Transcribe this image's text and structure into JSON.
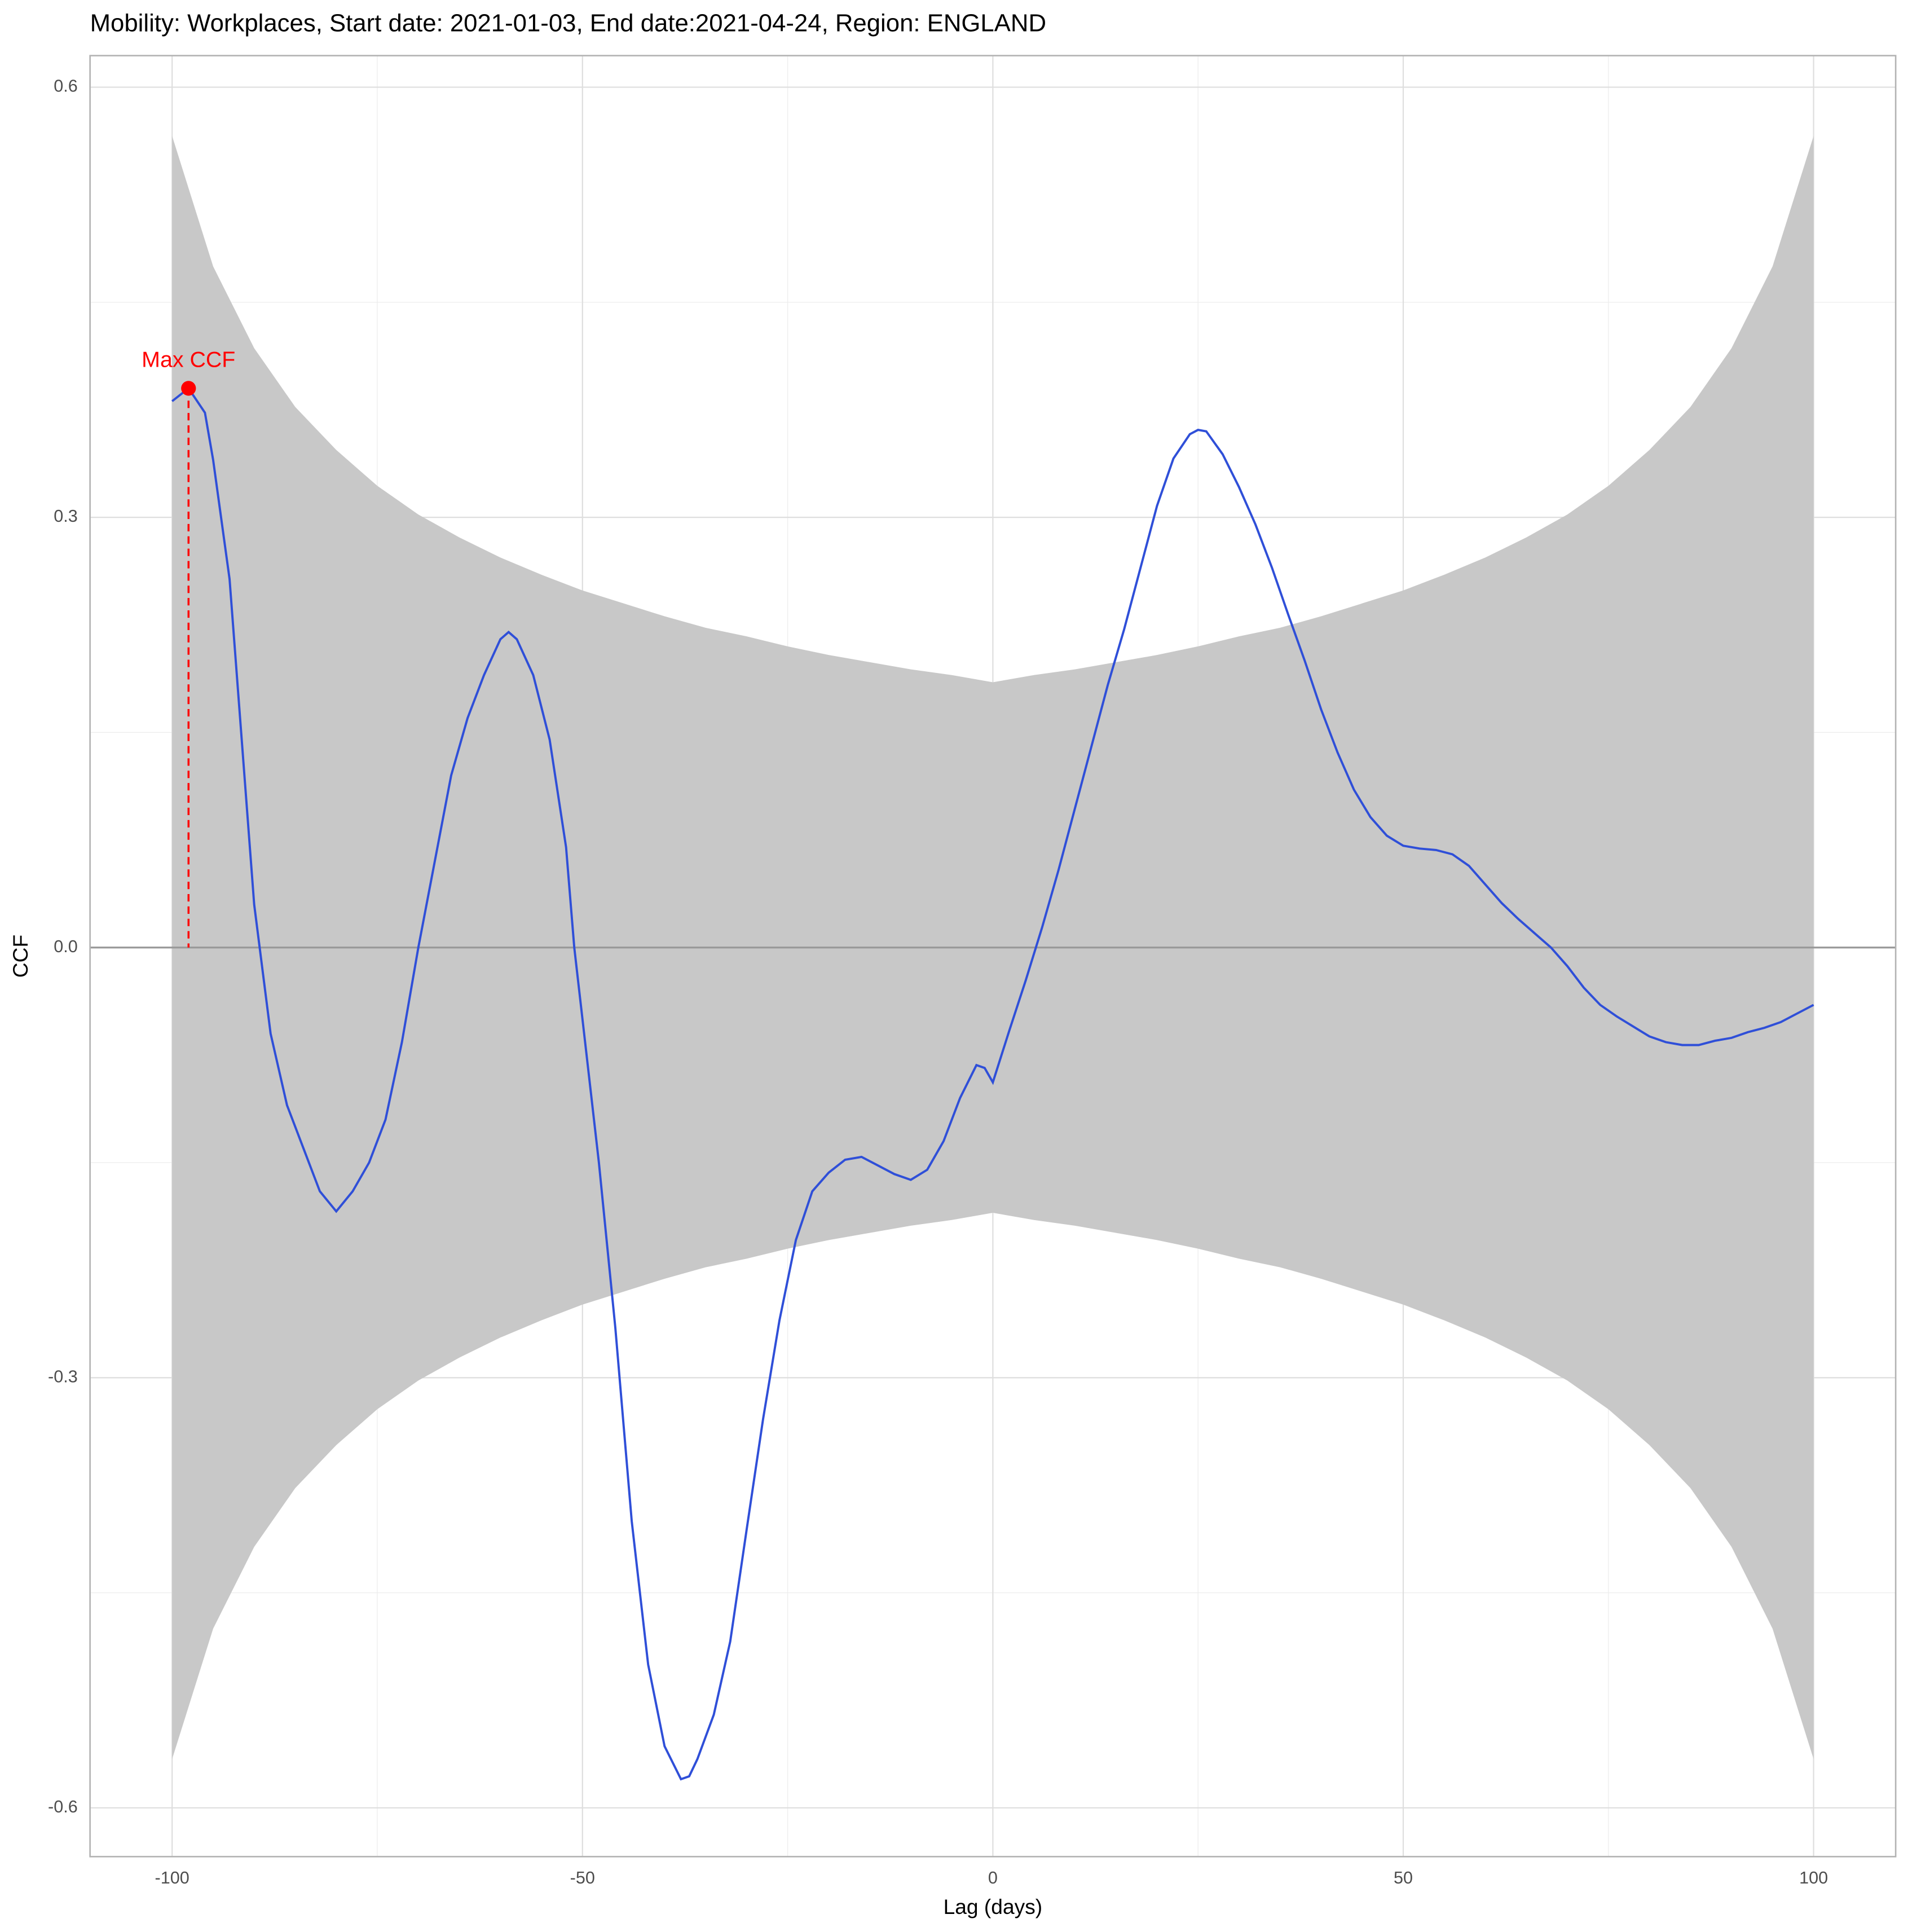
{
  "chart_data": {
    "type": "line",
    "title": "Mobility: Workplaces, Start date: 2021-01-03, End date:2021-04-24, Region: ENGLAND",
    "x_label": "Lag (days)",
    "y_label": "CCF",
    "xlim": [
      -110,
      110
    ],
    "ylim": [
      -0.634,
      0.622
    ],
    "xticks": [
      -100,
      -50,
      0,
      50,
      100
    ],
    "yticks": [
      -0.6,
      -0.3,
      {
        "value": 0,
        "label": "0.0"
      },
      0.3,
      0.6
    ],
    "x_minor_grid": [
      -75,
      -25,
      25,
      75
    ],
    "y_minor_grid": [
      -0.45,
      -0.15,
      0.15,
      0.45
    ],
    "grid": true,
    "hline": 0,
    "color": "#2f4fd8",
    "x": [
      -100,
      -98,
      -96,
      -95,
      -93,
      -90,
      -88,
      -86,
      -84,
      -82,
      -80,
      -78,
      -76,
      -74,
      -72,
      -70,
      -68,
      -66,
      -64,
      -62,
      -60,
      -59,
      -58,
      -56,
      -54,
      -52,
      -51,
      -48,
      -46,
      -44,
      -42,
      -40,
      -38,
      -37,
      -36,
      -34,
      -32,
      -30,
      -28,
      -26,
      -24,
      -22,
      -20,
      -18,
      -16,
      -14,
      -12,
      -10,
      -8,
      -6,
      -4,
      -2,
      -1,
      0,
      2,
      4,
      6,
      8,
      10,
      12,
      14,
      16,
      18,
      20,
      22,
      24,
      25,
      26,
      28,
      30,
      32,
      34,
      36,
      38,
      40,
      42,
      44,
      46,
      48,
      50,
      52,
      54,
      56,
      58,
      60,
      62,
      64,
      66,
      68,
      70,
      72,
      74,
      76,
      78,
      80,
      82,
      84,
      86,
      88,
      90,
      92,
      94,
      96,
      98,
      100
    ],
    "values": [
      0.381,
      0.39,
      0.373,
      0.34,
      0.257,
      0.03,
      -0.06,
      -0.11,
      -0.14,
      -0.17,
      -0.184,
      -0.17,
      -0.15,
      -0.12,
      -0.066,
      0.0,
      0.06,
      0.12,
      0.16,
      0.19,
      0.215,
      0.22,
      0.215,
      0.19,
      0.145,
      0.07,
      0.0,
      -0.15,
      -0.265,
      -0.4,
      -0.5,
      -0.557,
      -0.58,
      -0.578,
      -0.566,
      -0.535,
      -0.484,
      -0.406,
      -0.329,
      -0.26,
      -0.204,
      -0.17,
      -0.157,
      -0.148,
      -0.146,
      -0.152,
      -0.158,
      -0.162,
      -0.155,
      -0.135,
      -0.105,
      -0.082,
      -0.084,
      -0.094,
      -0.058,
      -0.023,
      0.014,
      0.054,
      0.097,
      0.14,
      0.183,
      0.222,
      0.265,
      0.308,
      0.341,
      0.358,
      0.361,
      0.36,
      0.344,
      0.321,
      0.295,
      0.265,
      0.232,
      0.2,
      0.166,
      0.136,
      0.11,
      0.091,
      0.078,
      0.071,
      0.069,
      0.068,
      0.065,
      0.057,
      0.044,
      0.031,
      0.02,
      0.01,
      0.0,
      -0.013,
      -0.028,
      -0.04,
      -0.048,
      -0.055,
      -0.062,
      -0.066,
      -0.068,
      -0.068,
      -0.065,
      -0.063,
      -0.059,
      -0.056,
      -0.052,
      -0.046,
      -0.04
    ],
    "band": {
      "color": "#c8c8c8",
      "x": [
        -100,
        -95,
        -90,
        -85,
        -80,
        -75,
        -70,
        -65,
        -60,
        -55,
        -50,
        -45,
        -40,
        -35,
        -30,
        -25,
        -20,
        -15,
        -10,
        -5,
        0,
        5,
        10,
        15,
        20,
        25,
        30,
        35,
        40,
        45,
        50,
        55,
        60,
        65,
        70,
        75,
        80,
        85,
        90,
        95,
        100
      ],
      "upper": [
        0.566,
        0.475,
        0.418,
        0.377,
        0.347,
        0.322,
        0.302,
        0.286,
        0.272,
        0.26,
        0.249,
        0.24,
        0.231,
        0.223,
        0.217,
        0.21,
        0.204,
        0.199,
        0.194,
        0.19,
        0.185,
        0.19,
        0.194,
        0.199,
        0.204,
        0.21,
        0.217,
        0.223,
        0.231,
        0.24,
        0.249,
        0.26,
        0.272,
        0.286,
        0.302,
        0.322,
        0.347,
        0.377,
        0.418,
        0.475,
        0.566
      ],
      "lower": [
        -0.566,
        -0.475,
        -0.418,
        -0.377,
        -0.347,
        -0.322,
        -0.302,
        -0.286,
        -0.272,
        -0.26,
        -0.249,
        -0.24,
        -0.231,
        -0.223,
        -0.217,
        -0.21,
        -0.204,
        -0.199,
        -0.194,
        -0.19,
        -0.185,
        -0.19,
        -0.194,
        -0.199,
        -0.204,
        -0.21,
        -0.217,
        -0.223,
        -0.231,
        -0.24,
        -0.249,
        -0.26,
        -0.272,
        -0.286,
        -0.302,
        -0.322,
        -0.347,
        -0.377,
        -0.418,
        -0.475,
        -0.566
      ]
    },
    "max_point": {
      "label": "Max CCF",
      "x": -98,
      "y": 0.39,
      "color": "#ff0000"
    }
  }
}
